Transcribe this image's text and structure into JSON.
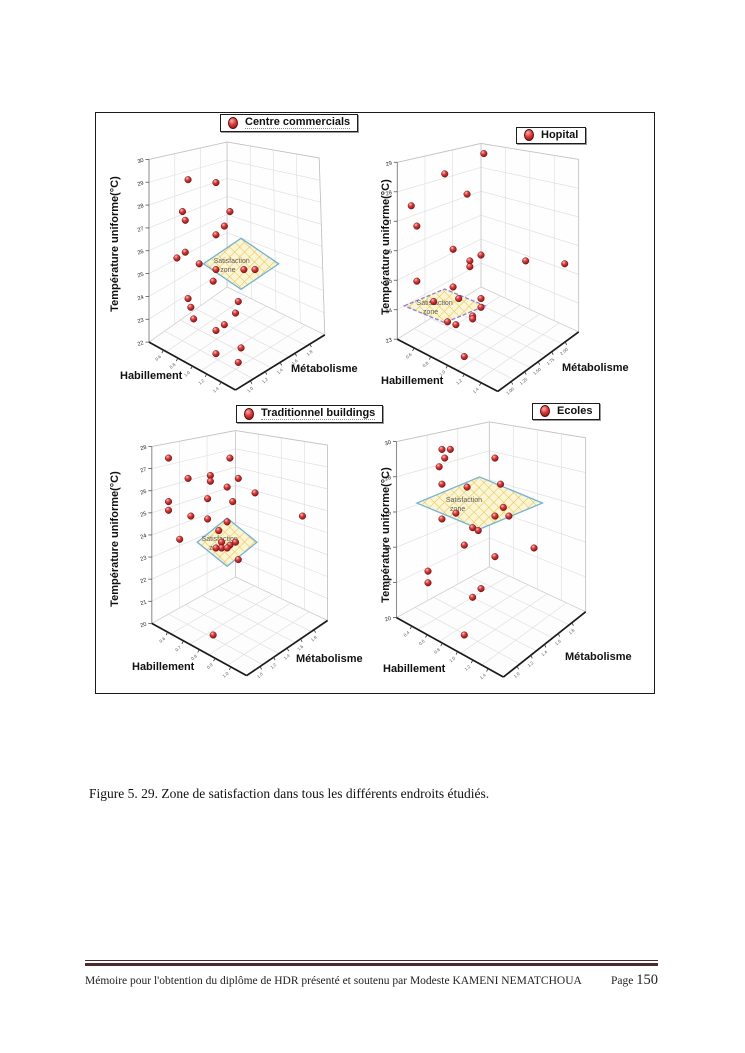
{
  "page": {
    "caption": "Figure 5. 29. Zone de satisfaction dans tous les différents endroits étudiés.",
    "footer": {
      "left": "Mémoire  pour l'obtention du diplôme de HDR présenté et soutenu  par Modeste KAMENI NEMATCHOUA",
      "page_label": "Page",
      "page_number": "150"
    }
  },
  "colors": {
    "point_red": "#cc2b2b",
    "zone_fill": "#fcf5d4",
    "zone_hatch": "#e2c455",
    "zone_border_blue": "#74b2d8",
    "zone_border_purple": "#8b7fd0",
    "footer_line": "#4a2a2c",
    "wall_grid": "#dcdcdc"
  },
  "chart_data": [
    {
      "type": "scatter3d",
      "legend": "Centre commercials",
      "ylabel": "Température uniforme(°C)",
      "xlabel": "Habillement",
      "zlabel": "Métabolisme",
      "ylim": [
        22,
        30
      ],
      "yticks": [
        "22",
        "23",
        "24",
        "25",
        "26",
        "27",
        "28",
        "29",
        "30"
      ],
      "xticks": [
        "0.6",
        "0.8",
        "1.0",
        "1.2",
        "1.4"
      ],
      "zticks": [
        "1.0",
        "1.2",
        "1.4",
        "1.6",
        "1.8"
      ],
      "zone_label_line1": "Satisfaction",
      "zone_label_line2": "zone",
      "zone": {
        "cx": 0.52,
        "cy": 0.52,
        "rx": 0.135,
        "ry": 0.088,
        "border": "#74b2d8",
        "style": "solid"
      },
      "points": [
        [
          0.33,
          0.23
        ],
        [
          0.43,
          0.24
        ],
        [
          0.31,
          0.34
        ],
        [
          0.48,
          0.34
        ],
        [
          0.32,
          0.37
        ],
        [
          0.46,
          0.39
        ],
        [
          0.43,
          0.42
        ],
        [
          0.32,
          0.48
        ],
        [
          0.29,
          0.5
        ],
        [
          0.37,
          0.52
        ],
        [
          0.43,
          0.54
        ],
        [
          0.53,
          0.54
        ],
        [
          0.57,
          0.54
        ],
        [
          0.42,
          0.58
        ],
        [
          0.33,
          0.64
        ],
        [
          0.34,
          0.67
        ],
        [
          0.35,
          0.71
        ],
        [
          0.51,
          0.65
        ],
        [
          0.5,
          0.69
        ],
        [
          0.46,
          0.73
        ],
        [
          0.43,
          0.75
        ],
        [
          0.52,
          0.81
        ],
        [
          0.43,
          0.83
        ],
        [
          0.51,
          0.86
        ]
      ]
    },
    {
      "type": "scatter3d",
      "legend": "Hopital",
      "ylabel": "Température uniforme(°C)",
      "xlabel": "Habillement",
      "zlabel": "Métabolisme",
      "ylim": [
        23,
        29
      ],
      "yticks": [
        "23",
        "24",
        "25",
        "26",
        "27",
        "28",
        "29"
      ],
      "xticks": [
        "0.6",
        "0.8",
        "1.0",
        "1.2",
        "1.4"
      ],
      "zticks": [
        "1.00",
        "1.25",
        "1.50",
        "1.75",
        "2.00"
      ],
      "zone_label_line1": "Satisfaction",
      "zone_label_line2": "zone",
      "zone": {
        "cx": 0.25,
        "cy": 0.665,
        "rx": 0.145,
        "ry": 0.058,
        "border": "#8b7fd0",
        "style": "dashed"
      },
      "points": [
        [
          0.39,
          0.14
        ],
        [
          0.25,
          0.21
        ],
        [
          0.33,
          0.28
        ],
        [
          0.13,
          0.32
        ],
        [
          0.15,
          0.39
        ],
        [
          0.28,
          0.47
        ],
        [
          0.38,
          0.49
        ],
        [
          0.34,
          0.51
        ],
        [
          0.34,
          0.53
        ],
        [
          0.54,
          0.51
        ],
        [
          0.68,
          0.52
        ],
        [
          0.15,
          0.58
        ],
        [
          0.28,
          0.6
        ],
        [
          0.3,
          0.64
        ],
        [
          0.38,
          0.64
        ],
        [
          0.21,
          0.65
        ],
        [
          0.35,
          0.7
        ],
        [
          0.35,
          0.71
        ],
        [
          0.26,
          0.72
        ],
        [
          0.29,
          0.73
        ],
        [
          0.38,
          0.67
        ],
        [
          0.32,
          0.84
        ]
      ]
    },
    {
      "type": "scatter3d",
      "legend": "Traditionnel buildings",
      "ylabel": "Température uniforme(°C)",
      "xlabel": "Habillement",
      "zlabel": "Métabolisme",
      "ylim": [
        20,
        28
      ],
      "yticks": [
        "20",
        "21",
        "22",
        "23",
        "24",
        "25",
        "26",
        "27",
        "28"
      ],
      "xticks": [
        "0.6",
        "0.7",
        "0.8",
        "0.9",
        "1.0"
      ],
      "zticks": [
        "1.0",
        "1.2",
        "1.4",
        "1.6",
        "1.8"
      ],
      "zone_label_line1": "Satisfaction",
      "zone_label_line2": "zone",
      "zone": {
        "cx": 0.47,
        "cy": 0.48,
        "rx": 0.107,
        "ry": 0.083,
        "border": "#74b2d8",
        "style": "solid"
      },
      "points": [
        [
          0.26,
          0.19
        ],
        [
          0.48,
          0.19
        ],
        [
          0.33,
          0.26
        ],
        [
          0.41,
          0.25
        ],
        [
          0.41,
          0.27
        ],
        [
          0.51,
          0.26
        ],
        [
          0.47,
          0.29
        ],
        [
          0.57,
          0.31
        ],
        [
          0.4,
          0.33
        ],
        [
          0.26,
          0.34
        ],
        [
          0.26,
          0.37
        ],
        [
          0.49,
          0.34
        ],
        [
          0.34,
          0.39
        ],
        [
          0.4,
          0.4
        ],
        [
          0.74,
          0.39
        ],
        [
          0.47,
          0.41
        ],
        [
          0.44,
          0.44
        ],
        [
          0.3,
          0.47
        ],
        [
          0.45,
          0.48
        ],
        [
          0.48,
          0.49
        ],
        [
          0.5,
          0.48
        ],
        [
          0.45,
          0.5
        ],
        [
          0.47,
          0.5
        ],
        [
          0.43,
          0.5
        ],
        [
          0.51,
          0.54
        ],
        [
          0.42,
          0.8
        ]
      ]
    },
    {
      "type": "scatter3d",
      "legend": "Ecoles",
      "ylabel": "Température uniforme(°C)",
      "xlabel": "Habillement",
      "zlabel": "Métabolisme",
      "ylim": [
        20,
        30
      ],
      "yticks": [
        "20",
        "22",
        "24",
        "26",
        "28",
        "30"
      ],
      "xticks": [
        "0.4",
        "0.6",
        "0.8",
        "1.0",
        "1.2",
        "1.4"
      ],
      "zticks": [
        "1.0",
        "1.2",
        "1.4",
        "1.6",
        "1.8"
      ],
      "zone_label_line1": "Satisfaction",
      "zone_label_line2": "zone",
      "zone": {
        "cx": 0.375,
        "cy": 0.345,
        "rx": 0.225,
        "ry": 0.09,
        "border": "#74b2d8",
        "style": "solid"
      },
      "points": [
        [
          0.24,
          0.16
        ],
        [
          0.27,
          0.16
        ],
        [
          0.25,
          0.19
        ],
        [
          0.43,
          0.19
        ],
        [
          0.23,
          0.22
        ],
        [
          0.24,
          0.28
        ],
        [
          0.33,
          0.29
        ],
        [
          0.45,
          0.28
        ],
        [
          0.29,
          0.38
        ],
        [
          0.24,
          0.4
        ],
        [
          0.43,
          0.39
        ],
        [
          0.48,
          0.39
        ],
        [
          0.46,
          0.36
        ],
        [
          0.35,
          0.43
        ],
        [
          0.37,
          0.44
        ],
        [
          0.32,
          0.49
        ],
        [
          0.57,
          0.5
        ],
        [
          0.43,
          0.53
        ],
        [
          0.19,
          0.58
        ],
        [
          0.19,
          0.62
        ],
        [
          0.38,
          0.64
        ],
        [
          0.35,
          0.67
        ],
        [
          0.32,
          0.8
        ]
      ]
    }
  ]
}
